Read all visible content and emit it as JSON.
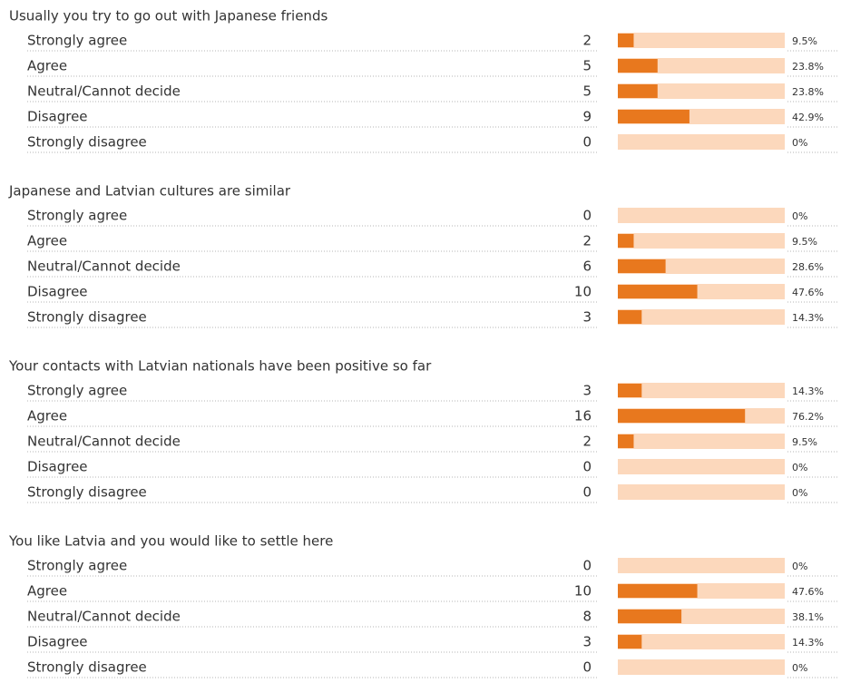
{
  "chart_data": [
    {
      "type": "bar",
      "title": "Usually you try to go out with Japanese friends",
      "categories": [
        "Strongly agree",
        "Agree",
        "Neutral/Cannot decide",
        "Disagree",
        "Strongly disagree"
      ],
      "counts": [
        2,
        5,
        5,
        9,
        0
      ],
      "values": [
        9.5,
        23.8,
        23.8,
        42.9,
        0
      ],
      "value_labels": [
        "9.5%",
        "23.8%",
        "23.8%",
        "42.9%",
        "0%"
      ],
      "xlim": [
        0,
        100
      ],
      "color": "#e8781e",
      "track_color": "#fcd8bc"
    },
    {
      "type": "bar",
      "title": "Japanese and Latvian cultures are similar",
      "categories": [
        "Strongly agree",
        "Agree",
        "Neutral/Cannot decide",
        "Disagree",
        "Strongly disagree"
      ],
      "counts": [
        0,
        2,
        6,
        10,
        3
      ],
      "values": [
        0,
        9.5,
        28.6,
        47.6,
        14.3
      ],
      "value_labels": [
        "0%",
        "9.5%",
        "28.6%",
        "47.6%",
        "14.3%"
      ],
      "xlim": [
        0,
        100
      ],
      "color": "#e8781e",
      "track_color": "#fcd8bc"
    },
    {
      "type": "bar",
      "title": "Your contacts with Latvian nationals have been positive so far",
      "categories": [
        "Strongly agree",
        "Agree",
        "Neutral/Cannot decide",
        "Disagree",
        "Strongly disagree"
      ],
      "counts": [
        3,
        16,
        2,
        0,
        0
      ],
      "values": [
        14.3,
        76.2,
        9.5,
        0,
        0
      ],
      "value_labels": [
        "14.3%",
        "76.2%",
        "9.5%",
        "0%",
        "0%"
      ],
      "xlim": [
        0,
        100
      ],
      "color": "#e8781e",
      "track_color": "#fcd8bc"
    },
    {
      "type": "bar",
      "title": "You like Latvia and you would like to settle here",
      "categories": [
        "Strongly agree",
        "Agree",
        "Neutral/Cannot decide",
        "Disagree",
        "Strongly disagree"
      ],
      "counts": [
        0,
        10,
        8,
        3,
        0
      ],
      "values": [
        0,
        47.6,
        38.1,
        14.3,
        0
      ],
      "value_labels": [
        "0%",
        "47.6%",
        "38.1%",
        "14.3%",
        "0%"
      ],
      "xlim": [
        0,
        100
      ],
      "color": "#e8781e",
      "track_color": "#fcd8bc"
    }
  ]
}
